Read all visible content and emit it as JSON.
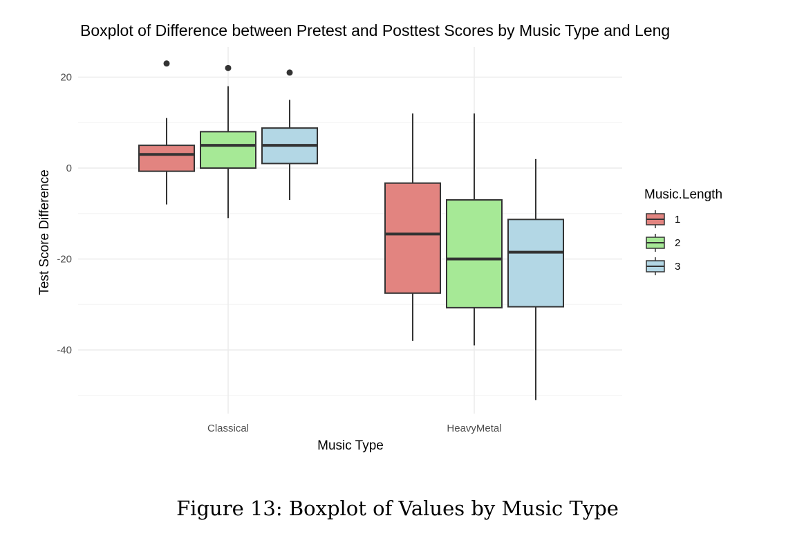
{
  "chart_data": {
    "type": "box",
    "title": "Boxplot of Difference between Pretest and Posttest Scores by Music Type and Leng",
    "xlabel": "Music Type",
    "ylabel": "Test Score Difference",
    "categories": [
      "Classical",
      "HeavyMetal"
    ],
    "ylim": [
      -50,
      26
    ],
    "yticks": [
      20,
      0,
      -20,
      -40
    ],
    "ytick_labels": [
      "20",
      "0",
      "-20",
      "-40"
    ],
    "grid": true,
    "legend": {
      "title": "Music.Length",
      "position": "right"
    },
    "series": [
      {
        "name": "1",
        "color": "#e28480",
        "boxes": [
          {
            "category": "Classical",
            "whisker_low": -8,
            "q1": -0.7,
            "median": 3,
            "q3": 5,
            "whisker_high": 11,
            "outliers": [
              23
            ]
          },
          {
            "category": "HeavyMetal",
            "whisker_low": -38,
            "q1": -27.5,
            "median": -14.5,
            "q3": -3.3,
            "whisker_high": 12,
            "outliers": []
          }
        ]
      },
      {
        "name": "2",
        "color": "#a6e996",
        "boxes": [
          {
            "category": "Classical",
            "whisker_low": -11,
            "q1": 0,
            "median": 5,
            "q3": 8,
            "whisker_high": 18,
            "outliers": [
              22
            ]
          },
          {
            "category": "HeavyMetal",
            "whisker_low": -39,
            "q1": -30.7,
            "median": -20,
            "q3": -7,
            "whisker_high": 12,
            "outliers": []
          }
        ]
      },
      {
        "name": "3",
        "color": "#b3d7e5",
        "boxes": [
          {
            "category": "Classical",
            "whisker_low": -7,
            "q1": 1,
            "median": 5,
            "q3": 8.8,
            "whisker_high": 15,
            "outliers": [
              21
            ]
          },
          {
            "category": "HeavyMetal",
            "whisker_low": -51,
            "q1": -30.5,
            "median": -18.5,
            "q3": -11.3,
            "whisker_high": 2,
            "outliers": []
          }
        ]
      }
    ]
  },
  "caption": "Figure 13: Boxplot of Values by Music Type"
}
